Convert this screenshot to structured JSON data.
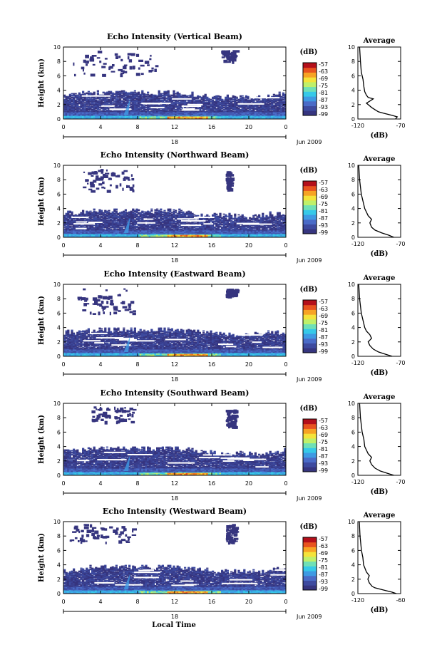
{
  "figure": {
    "xlabel": "Local Time",
    "date_label": "Jun 2009",
    "date_tick": "18",
    "colorbar_unit": "(dB)",
    "avg_title": "Average",
    "avg_xlabel": "(dB)"
  },
  "chart_data": [
    {
      "type": "heatmap",
      "title": "Echo Intensity (Vertical Beam)",
      "ylabel": "Height (km)",
      "xlabel": "Local Time",
      "x_ticks": [
        "0",
        "4",
        "8",
        "12",
        "16",
        "20",
        "0"
      ],
      "y_ticks": [
        "0",
        "2",
        "4",
        "6",
        "8",
        "10"
      ],
      "xlim": [
        0,
        24
      ],
      "ylim": [
        0,
        10
      ],
      "colorbar_ticks": [
        "-57",
        "-63",
        "-69",
        "-75",
        "-81",
        "-87",
        "-93",
        "-99"
      ],
      "clouds": [
        {
          "x0": 1,
          "x1": 10,
          "y0": 6.2,
          "y1": 9.5
        },
        {
          "x0": 17,
          "x1": 18.5,
          "y0": 8,
          "y1": 9.6
        }
      ],
      "average": {
        "title": "Average",
        "xlabel": "(dB)",
        "xlim": [
          -120,
          -70
        ],
        "x_ticks": [
          "-120",
          "-70"
        ],
        "y_ticks": [
          "0",
          "2",
          "4",
          "6",
          "8",
          "10"
        ],
        "height": [
          0,
          0.3,
          0.5,
          0.8,
          1,
          1.3,
          1.6,
          2,
          2.2,
          2.5,
          2.8,
          3,
          3.3,
          3.8,
          4.5,
          5.5,
          6.5,
          8,
          10
        ],
        "db": [
          -76,
          -74,
          -80,
          -90,
          -96,
          -100,
          -104,
          -108,
          -110,
          -106,
          -102,
          -108,
          -110,
          -112,
          -113,
          -114,
          -116,
          -117,
          -118
        ]
      }
    },
    {
      "type": "heatmap",
      "title": "Echo Intensity (Northward Beam)",
      "ylabel": "Height (km)",
      "xlabel": "Local Time",
      "x_ticks": [
        "0",
        "4",
        "8",
        "12",
        "16",
        "20",
        "0"
      ],
      "y_ticks": [
        "0",
        "2",
        "4",
        "6",
        "8",
        "10"
      ],
      "xlim": [
        0,
        24
      ],
      "ylim": [
        0,
        10
      ],
      "colorbar_ticks": [
        "-57",
        "-63",
        "-69",
        "-75",
        "-81",
        "-87",
        "-93",
        "-99"
      ],
      "clouds": [
        {
          "x0": 2,
          "x1": 7.5,
          "y0": 6.5,
          "y1": 9.5
        },
        {
          "x0": 17.5,
          "x1": 18,
          "y0": 6.8,
          "y1": 9.2
        }
      ],
      "average": {
        "title": "Average",
        "xlabel": "(dB)",
        "xlim": [
          -120,
          -70
        ],
        "x_ticks": [
          "-120",
          "-70"
        ],
        "y_ticks": [
          "0",
          "2",
          "4",
          "6",
          "8",
          "10"
        ],
        "height": [
          0,
          0.3,
          0.6,
          1,
          1.4,
          2,
          2.5,
          3,
          3.5,
          4,
          5,
          6,
          7,
          8,
          10
        ],
        "db": [
          -78,
          -84,
          -92,
          -100,
          -104,
          -106,
          -104,
          -108,
          -110,
          -112,
          -114,
          -116,
          -117,
          -118,
          -119
        ]
      }
    },
    {
      "type": "heatmap",
      "title": "Echo Intensity (Eastward Beam)",
      "ylabel": "Height (km)",
      "xlabel": "Local Time",
      "x_ticks": [
        "0",
        "4",
        "8",
        "12",
        "16",
        "20",
        "0"
      ],
      "y_ticks": [
        "0",
        "2",
        "4",
        "6",
        "8",
        "10"
      ],
      "xlim": [
        0,
        24
      ],
      "ylim": [
        0,
        10
      ],
      "colorbar_ticks": [
        "-57",
        "-63",
        "-69",
        "-75",
        "-81",
        "-87",
        "-93",
        "-99"
      ],
      "clouds": [
        {
          "x0": 1.5,
          "x1": 7.5,
          "y0": 6,
          "y1": 9.5
        },
        {
          "x0": 17.5,
          "x1": 18.5,
          "y0": 8.5,
          "y1": 9.4
        }
      ],
      "average": {
        "title": "Average",
        "xlabel": "(dB)",
        "xlim": [
          -120,
          -70
        ],
        "x_ticks": [
          "-120",
          "-70"
        ],
        "y_ticks": [
          "0",
          "2",
          "4",
          "6",
          "8",
          "10"
        ],
        "height": [
          0,
          0.3,
          0.6,
          1,
          1.5,
          2,
          2.5,
          3,
          3.5,
          4,
          5,
          6,
          7,
          8,
          10
        ],
        "db": [
          -80,
          -88,
          -96,
          -102,
          -106,
          -108,
          -104,
          -106,
          -110,
          -112,
          -114,
          -116,
          -117,
          -118,
          -119
        ]
      }
    },
    {
      "type": "heatmap",
      "title": "Echo Intensity (Southward Beam)",
      "ylabel": "Height (km)",
      "xlabel": "Local Time",
      "x_ticks": [
        "0",
        "4",
        "8",
        "12",
        "16",
        "20",
        "0"
      ],
      "y_ticks": [
        "0",
        "2",
        "4",
        "6",
        "8",
        "10"
      ],
      "xlim": [
        0,
        24
      ],
      "ylim": [
        0,
        10
      ],
      "colorbar_ticks": [
        "-57",
        "-63",
        "-69",
        "-75",
        "-81",
        "-87",
        "-93",
        "-99"
      ],
      "clouds": [
        {
          "x0": 3,
          "x1": 7.5,
          "y0": 7.5,
          "y1": 9.6
        },
        {
          "x0": 17.5,
          "x1": 18.5,
          "y0": 6.8,
          "y1": 9.3
        }
      ],
      "average": {
        "title": "Average",
        "xlabel": "(dB)",
        "xlim": [
          -120,
          -70
        ],
        "x_ticks": [
          "-120",
          "-70"
        ],
        "y_ticks": [
          "0",
          "2",
          "4",
          "6",
          "8",
          "10"
        ],
        "height": [
          0,
          0.3,
          0.6,
          1,
          1.5,
          2,
          2.5,
          3,
          3.5,
          4,
          5,
          6,
          7,
          8,
          10
        ],
        "db": [
          -78,
          -86,
          -94,
          -100,
          -104,
          -106,
          -104,
          -108,
          -110,
          -112,
          -113,
          -115,
          -116,
          -117,
          -118
        ]
      }
    },
    {
      "type": "heatmap",
      "title": "Echo Intensity (Westward Beam)",
      "ylabel": "Height (km)",
      "xlabel": "Local Time",
      "x_ticks": [
        "0",
        "4",
        "8",
        "12",
        "16",
        "20",
        "0"
      ],
      "y_ticks": [
        "0",
        "2",
        "4",
        "6",
        "8",
        "10"
      ],
      "xlim": [
        0,
        24
      ],
      "ylim": [
        0,
        10
      ],
      "colorbar_ticks": [
        "-57",
        "-63",
        "-69",
        "-75",
        "-81",
        "-87",
        "-93",
        "-99"
      ],
      "clouds": [
        {
          "x0": 0.5,
          "x1": 7.5,
          "y0": 7.2,
          "y1": 9.8
        },
        {
          "x0": 17.5,
          "x1": 18.5,
          "y0": 7.2,
          "y1": 9.7
        }
      ],
      "average": {
        "title": "Average",
        "xlabel": "(dB)",
        "xlim": [
          -120,
          -60
        ],
        "x_ticks": [
          "-120",
          "-60"
        ],
        "y_ticks": [
          "0",
          "2",
          "4",
          "6",
          "8",
          "10"
        ],
        "height": [
          0,
          0.2,
          0.5,
          0.8,
          1,
          1.5,
          2,
          2.5,
          3,
          3.5,
          4,
          5,
          6,
          7,
          8,
          10
        ],
        "db": [
          -66,
          -72,
          -84,
          -96,
          -100,
          -104,
          -106,
          -104,
          -108,
          -110,
          -112,
          -113,
          -115,
          -116,
          -117,
          -118
        ]
      }
    }
  ],
  "colors": {
    "background": "#ffffff",
    "axis": "#000000",
    "trace": "#000000",
    "colorscale": [
      "#36357f",
      "#3d4a9f",
      "#4a6bc7",
      "#3e9ae3",
      "#36c9e8",
      "#6fe0b6",
      "#bff06a",
      "#f4e33a",
      "#f7a324",
      "#e8531f",
      "#b40f1a"
    ]
  }
}
